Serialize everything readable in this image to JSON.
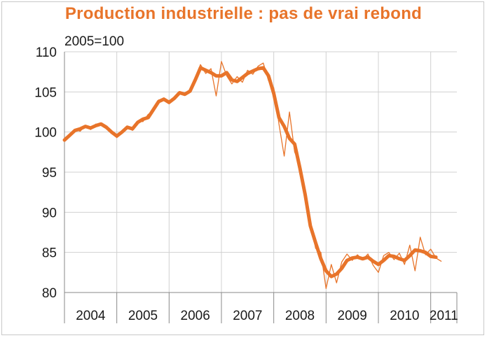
{
  "chart_data": {
    "type": "line",
    "title": "Production industrielle : pas de vrai rebond",
    "subtitle": "2005=100",
    "xlabel": "",
    "ylabel": "",
    "ylim": [
      80,
      110
    ],
    "yticks": [
      80,
      85,
      90,
      95,
      100,
      105,
      110
    ],
    "xlim": [
      2004,
      2011.5
    ],
    "categories": [
      "2004",
      "2005",
      "2006",
      "2007",
      "2008",
      "2009",
      "2010",
      "2011"
    ],
    "grid": true,
    "legend": "none",
    "colors": {
      "series": "#e8742a",
      "grid": "#d0d0d0",
      "axis": "#888888"
    },
    "series": [
      {
        "style": "thick",
        "x": [
          2004.0,
          2004.1,
          2004.2,
          2004.3,
          2004.4,
          2004.5,
          2004.6,
          2004.7,
          2004.8,
          2004.9,
          2005.0,
          2005.1,
          2005.2,
          2005.3,
          2005.4,
          2005.5,
          2005.6,
          2005.7,
          2005.8,
          2005.9,
          2006.0,
          2006.1,
          2006.2,
          2006.3,
          2006.4,
          2006.5,
          2006.6,
          2006.7,
          2006.8,
          2006.9,
          2007.0,
          2007.1,
          2007.2,
          2007.3,
          2007.4,
          2007.5,
          2007.6,
          2007.7,
          2007.8,
          2007.9,
          2008.0,
          2008.1,
          2008.2,
          2008.3,
          2008.4,
          2008.5,
          2008.6,
          2008.7,
          2008.8,
          2008.9,
          2009.0,
          2009.1,
          2009.2,
          2009.3,
          2009.4,
          2009.5,
          2009.6,
          2009.7,
          2009.8,
          2009.9,
          2010.0,
          2010.1,
          2010.2,
          2010.3,
          2010.4,
          2010.5,
          2010.6,
          2010.7,
          2010.8,
          2010.9,
          2011.0,
          2011.1
        ],
        "values": [
          99.0,
          99.6,
          100.2,
          100.4,
          100.7,
          100.5,
          100.8,
          101.0,
          100.6,
          100.0,
          99.5,
          100.0,
          100.6,
          100.4,
          101.2,
          101.6,
          101.8,
          102.8,
          103.8,
          104.1,
          103.7,
          104.2,
          104.9,
          104.7,
          105.1,
          106.5,
          108.0,
          107.7,
          107.4,
          107.0,
          107.0,
          107.4,
          106.5,
          106.3,
          106.8,
          107.3,
          107.6,
          107.9,
          108.0,
          107.0,
          104.8,
          101.8,
          100.7,
          99.2,
          98.5,
          95.5,
          92.2,
          88.3,
          86.2,
          84.2,
          82.7,
          82.0,
          82.3,
          83.0,
          84.0,
          84.3,
          84.4,
          84.2,
          84.4,
          83.9,
          83.5,
          84.0,
          84.6,
          84.5,
          84.2,
          84.0,
          84.6,
          85.3,
          85.2,
          85.0,
          84.5,
          84.4
        ]
      },
      {
        "style": "thin",
        "x": [
          2004.0,
          2004.1,
          2004.2,
          2004.3,
          2004.4,
          2004.5,
          2004.6,
          2004.7,
          2004.8,
          2004.9,
          2005.0,
          2005.1,
          2005.2,
          2005.3,
          2005.4,
          2005.5,
          2005.6,
          2005.7,
          2005.8,
          2005.9,
          2006.0,
          2006.1,
          2006.2,
          2006.3,
          2006.4,
          2006.5,
          2006.6,
          2006.7,
          2006.8,
          2006.9,
          2007.0,
          2007.1,
          2007.2,
          2007.3,
          2007.4,
          2007.5,
          2007.6,
          2007.7,
          2007.8,
          2007.9,
          2008.0,
          2008.1,
          2008.2,
          2008.3,
          2008.4,
          2008.5,
          2008.6,
          2008.7,
          2008.8,
          2008.9,
          2009.0,
          2009.1,
          2009.2,
          2009.3,
          2009.4,
          2009.5,
          2009.6,
          2009.7,
          2009.8,
          2009.9,
          2010.0,
          2010.1,
          2010.2,
          2010.3,
          2010.4,
          2010.5,
          2010.6,
          2010.7,
          2010.8,
          2010.9,
          2011.0,
          2011.1,
          2011.2
        ],
        "values": [
          99.2,
          99.5,
          100.3,
          100.1,
          100.8,
          100.3,
          101.0,
          100.8,
          100.4,
          100.2,
          99.3,
          100.2,
          100.7,
          100.2,
          101.4,
          101.3,
          102.2,
          102.6,
          104.0,
          103.9,
          103.5,
          104.4,
          104.7,
          104.9,
          105.0,
          106.8,
          108.4,
          107.3,
          107.9,
          104.5,
          108.8,
          107.0,
          106.0,
          106.9,
          106.2,
          107.7,
          107.2,
          108.2,
          108.6,
          106.4,
          105.5,
          101.0,
          97.0,
          102.5,
          97.5,
          96.0,
          91.5,
          88.8,
          85.5,
          85.0,
          80.5,
          83.5,
          81.2,
          83.8,
          84.8,
          84.0,
          84.7,
          84.1,
          84.8,
          83.4,
          82.5,
          84.6,
          85.0,
          84.1,
          84.9,
          83.5,
          85.9,
          82.7,
          86.9,
          84.7,
          85.4,
          84.3,
          83.9
        ]
      }
    ]
  }
}
